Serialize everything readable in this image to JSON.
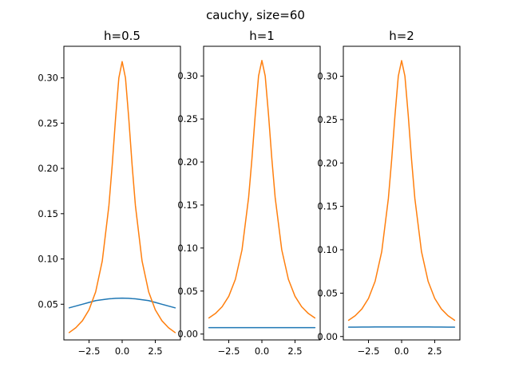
{
  "title": "cauchy, size=60",
  "colors": {
    "kde": "#1f77b4",
    "pdf": "#ff7f0e",
    "axes": "#000000"
  },
  "chart_data": [
    {
      "type": "line",
      "title": "h=0.5",
      "xlim": [
        -4.4,
        4.4
      ],
      "ylim": [
        0.0106,
        0.3349
      ],
      "xticks": [
        -2.5,
        0,
        2.5
      ],
      "xtick_labels": [
        "−2.5",
        "0.0",
        "2.5"
      ],
      "yticks": [
        0.05,
        0.1,
        0.15,
        0.2,
        0.25,
        0.3
      ],
      "ytick_labels": [
        "0.05",
        "0.10",
        "0.15",
        "0.20",
        "0.25",
        "0.30"
      ],
      "x": [
        -4.0,
        -3.5,
        -3.0,
        -2.5,
        -2.0,
        -1.5,
        -1.0,
        -0.75,
        -0.5,
        -0.25,
        0.0,
        0.25,
        0.5,
        0.75,
        1.0,
        1.5,
        2.0,
        2.5,
        3.0,
        3.5,
        4.0
      ],
      "series": [
        {
          "values": [
            0.046,
            0.048,
            0.05,
            0.052,
            0.054,
            0.055,
            0.056,
            0.0562,
            0.0565,
            0.0567,
            0.0568,
            0.0567,
            0.0565,
            0.0562,
            0.056,
            0.055,
            0.054,
            0.052,
            0.05,
            0.048,
            0.046
          ]
        },
        {
          "values": [
            0.0187,
            0.024,
            0.0318,
            0.0439,
            0.0637,
            0.0979,
            0.159,
            0.204,
            0.255,
            0.3,
            0.318,
            0.3,
            0.255,
            0.204,
            0.159,
            0.0979,
            0.0637,
            0.0439,
            0.0318,
            0.024,
            0.0187
          ]
        }
      ]
    },
    {
      "type": "line",
      "title": "h=1",
      "xlim": [
        -4.4,
        4.4
      ],
      "ylim": [
        -0.0068,
        0.3345
      ],
      "xticks": [
        -2.5,
        0,
        2.5
      ],
      "xtick_labels": [
        "−2.5",
        "0.0",
        "2.5"
      ],
      "yticks": [
        0.0,
        0.05,
        0.1,
        0.15,
        0.2,
        0.25,
        0.3
      ],
      "ytick_labels": [
        "0.00",
        "0.05",
        "0.10",
        "0.15",
        "0.20",
        "0.25",
        "0.30"
      ],
      "x": [
        -4.0,
        -3.5,
        -3.0,
        -2.5,
        -2.0,
        -1.5,
        -1.0,
        -0.75,
        -0.5,
        -0.25,
        0.0,
        0.25,
        0.5,
        0.75,
        1.0,
        1.5,
        2.0,
        2.5,
        3.0,
        3.5,
        4.0
      ],
      "series": [
        {
          "values": [
            0.0075,
            0.0075,
            0.0075,
            0.0075,
            0.0075,
            0.0075,
            0.0075,
            0.0075,
            0.0075,
            0.0075,
            0.0075,
            0.0075,
            0.0075,
            0.0075,
            0.0075,
            0.0075,
            0.0075,
            0.0075,
            0.0075,
            0.0075,
            0.0075
          ]
        },
        {
          "values": [
            0.0187,
            0.024,
            0.0318,
            0.0439,
            0.0637,
            0.0979,
            0.159,
            0.204,
            0.255,
            0.3,
            0.318,
            0.3,
            0.255,
            0.204,
            0.159,
            0.0979,
            0.0637,
            0.0439,
            0.0318,
            0.024,
            0.0187
          ]
        }
      ]
    },
    {
      "type": "line",
      "title": "h=2",
      "xlim": [
        -4.4,
        4.4
      ],
      "ylim": [
        -0.0039,
        0.3345
      ],
      "xticks": [
        -2.5,
        0,
        2.5
      ],
      "xtick_labels": [
        "−2.5",
        "0.0",
        "2.5"
      ],
      "yticks": [
        0.0,
        0.05,
        0.1,
        0.15,
        0.2,
        0.25,
        0.3
      ],
      "ytick_labels": [
        "0.00",
        "0.05",
        "0.10",
        "0.15",
        "0.20",
        "0.25",
        "0.30"
      ],
      "x": [
        -4.0,
        -3.5,
        -3.0,
        -2.5,
        -2.0,
        -1.5,
        -1.0,
        -0.75,
        -0.5,
        -0.25,
        0.0,
        0.25,
        0.5,
        0.75,
        1.0,
        1.5,
        2.0,
        2.5,
        3.0,
        3.5,
        4.0
      ],
      "series": [
        {
          "values": [
            0.0108,
            0.0108,
            0.0109,
            0.0109,
            0.011,
            0.011,
            0.011,
            0.011,
            0.011,
            0.011,
            0.011,
            0.011,
            0.011,
            0.011,
            0.011,
            0.011,
            0.011,
            0.0109,
            0.0109,
            0.0108,
            0.0108
          ]
        },
        {
          "values": [
            0.0187,
            0.024,
            0.0318,
            0.0439,
            0.0637,
            0.0979,
            0.159,
            0.204,
            0.255,
            0.3,
            0.318,
            0.3,
            0.255,
            0.204,
            0.159,
            0.0979,
            0.0637,
            0.0439,
            0.0318,
            0.024,
            0.0187
          ]
        }
      ]
    }
  ]
}
